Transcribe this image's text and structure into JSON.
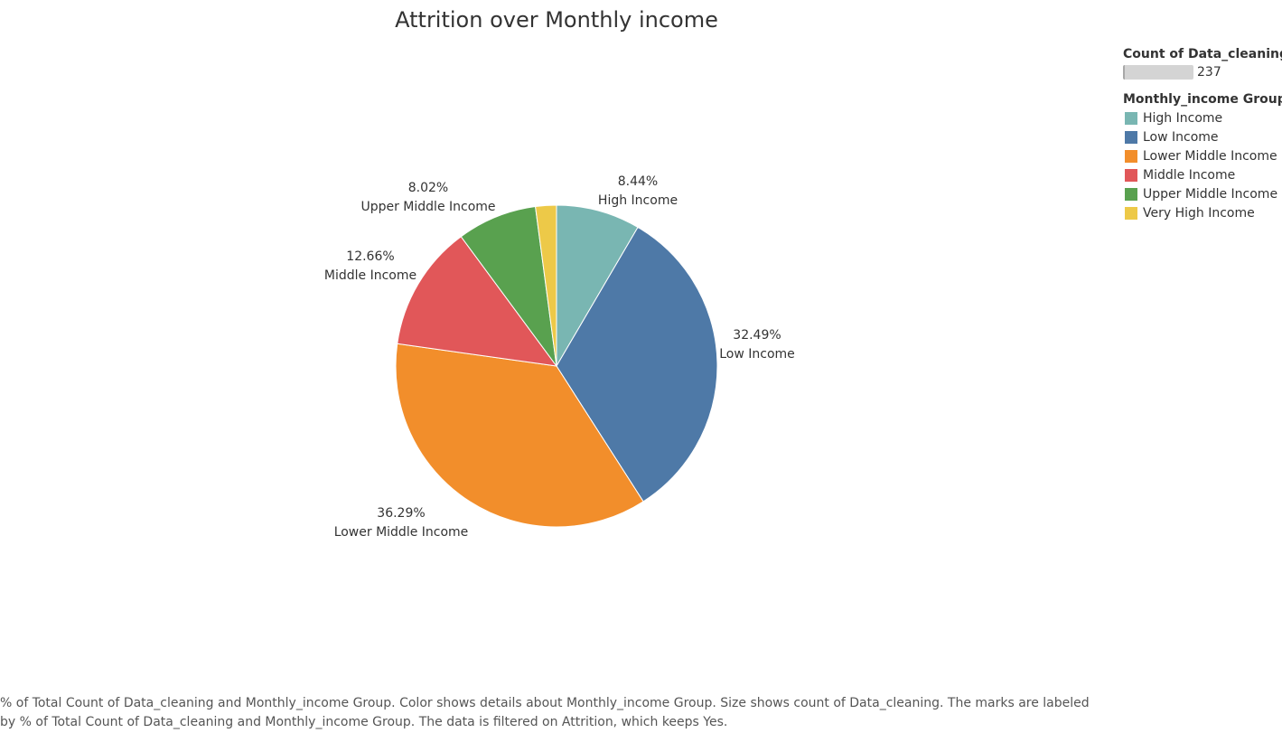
{
  "chart_data": {
    "type": "pie",
    "title": "Attrition over Monthly income",
    "slices": [
      {
        "label": "High Income",
        "value": 8.44,
        "value_label": "8.44%",
        "color": "#79b6b2"
      },
      {
        "label": "Low Income",
        "value": 32.49,
        "value_label": "32.49%",
        "color": "#4e79a7"
      },
      {
        "label": "Lower Middle Income",
        "value": 36.29,
        "value_label": "36.29%",
        "color": "#f28e2b"
      },
      {
        "label": "Middle Income",
        "value": 12.66,
        "value_label": "12.66%",
        "color": "#e15759"
      },
      {
        "label": "Upper Middle Income",
        "value": 8.02,
        "value_label": "8.02%",
        "color": "#59a14f"
      },
      {
        "label": "Very High Income",
        "value": 2.1,
        "value_label": "",
        "color": "#edc948"
      }
    ],
    "legend_placement": "top-right"
  },
  "legend": {
    "size_title": "Count of Data_cleaning",
    "size_value": "237",
    "color_title": "Monthly_income Group",
    "items": [
      {
        "label": "High Income",
        "color": "#79b6b2"
      },
      {
        "label": "Low Income",
        "color": "#4e79a7"
      },
      {
        "label": "Lower Middle Income",
        "color": "#f28e2b"
      },
      {
        "label": "Middle Income",
        "color": "#e15759"
      },
      {
        "label": "Upper Middle Income",
        "color": "#59a14f"
      },
      {
        "label": "Very High Income",
        "color": "#edc948"
      }
    ]
  },
  "caption": {
    "line1": "% of Total Count of Data_cleaning and Monthly_income Group.  Color shows details about Monthly_income Group.  Size shows count of Data_cleaning.  The marks are labeled",
    "line2": "by % of Total Count of Data_cleaning and Monthly_income Group. The data is filtered on Attrition, which keeps Yes."
  }
}
